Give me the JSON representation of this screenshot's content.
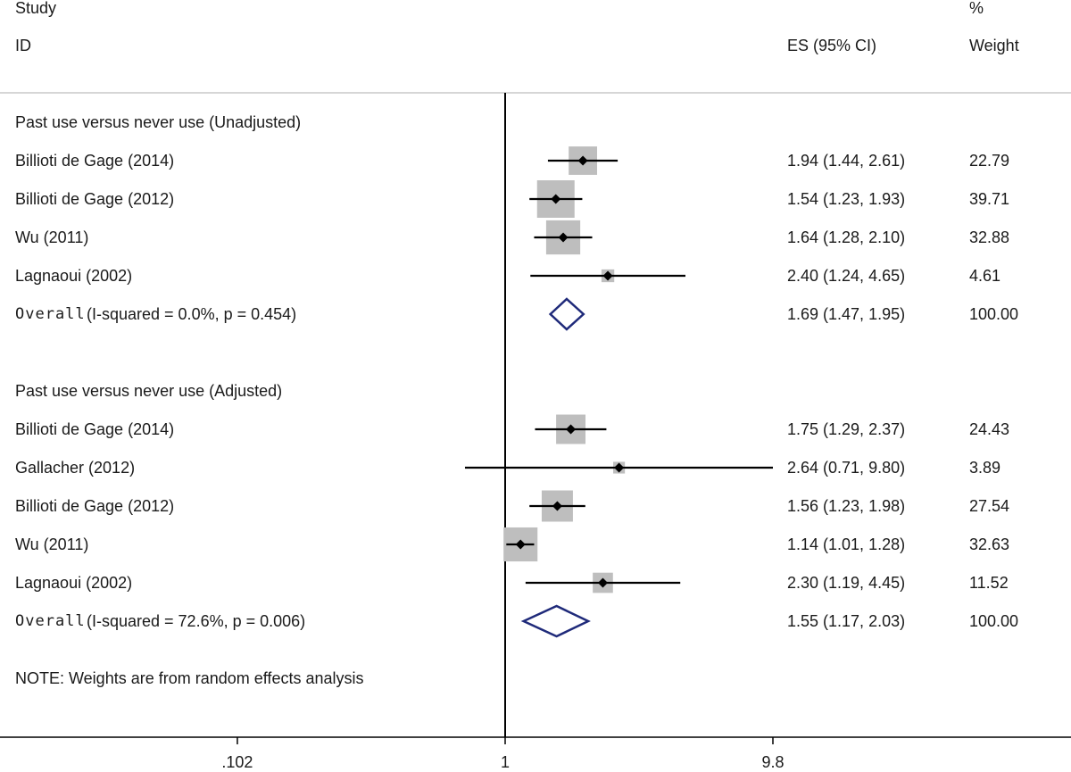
{
  "header": {
    "study_label": "Study",
    "id_label": "ID",
    "es_label": "ES (95% CI)",
    "pct_label": "%",
    "weight_label": "Weight"
  },
  "footnote": "NOTE: Weights are from random effects analysis",
  "colors": {
    "box": "#bebebe",
    "point": "#000000",
    "ci_line": "#000000",
    "diamond": "#1f2a7a",
    "axis": "#000000",
    "header_rule": "#c8c8c8"
  },
  "chart_data": {
    "type": "forest",
    "x_scale": "log",
    "reference_line": 1,
    "xticks": [
      {
        "value": 0.102,
        "label": ".102"
      },
      {
        "value": 1,
        "label": "1"
      },
      {
        "value": 9.8,
        "label": "9.8"
      }
    ],
    "groups": [
      {
        "title": "Past use versus never use (Unadjusted)",
        "studies": [
          {
            "name": "Billioti de Gage (2014)",
            "es": 1.94,
            "lower": 1.44,
            "upper": 2.61,
            "es_text": "1.94 (1.44, 2.61)",
            "weight": 22.79,
            "weight_text": "22.79"
          },
          {
            "name": "Billioti de Gage (2012)",
            "es": 1.54,
            "lower": 1.23,
            "upper": 1.93,
            "es_text": "1.54 (1.23, 1.93)",
            "weight": 39.71,
            "weight_text": "39.71"
          },
          {
            "name": "Wu (2011)",
            "es": 1.64,
            "lower": 1.28,
            "upper": 2.1,
            "es_text": "1.64 (1.28, 2.10)",
            "weight": 32.88,
            "weight_text": "32.88"
          },
          {
            "name": "Lagnaoui (2002)",
            "es": 2.4,
            "lower": 1.24,
            "upper": 4.65,
            "es_text": "2.40 (1.24, 4.65)",
            "weight": 4.61,
            "weight_text": "4.61"
          }
        ],
        "overall": {
          "label": "Overall",
          "heterogeneity": "(I-squared = 0.0%, p = 0.454)",
          "es": 1.69,
          "lower": 1.47,
          "upper": 1.95,
          "es_text": "1.69 (1.47, 1.95)",
          "weight_text": "100.00"
        }
      },
      {
        "title": "Past use versus never use (Adjusted)",
        "studies": [
          {
            "name": "Billioti de Gage (2014)",
            "es": 1.75,
            "lower": 1.29,
            "upper": 2.37,
            "es_text": "1.75 (1.29, 2.37)",
            "weight": 24.43,
            "weight_text": "24.43"
          },
          {
            "name": "Gallacher (2012)",
            "es": 2.64,
            "lower": 0.71,
            "upper": 9.8,
            "es_text": "2.64 (0.71, 9.80)",
            "weight": 3.89,
            "weight_text": "3.89"
          },
          {
            "name": "Billioti de Gage (2012)",
            "es": 1.56,
            "lower": 1.23,
            "upper": 1.98,
            "es_text": "1.56 (1.23, 1.98)",
            "weight": 27.54,
            "weight_text": "27.54"
          },
          {
            "name": "Wu (2011)",
            "es": 1.14,
            "lower": 1.01,
            "upper": 1.28,
            "es_text": "1.14 (1.01, 1.28)",
            "weight": 32.63,
            "weight_text": "32.63"
          },
          {
            "name": "Lagnaoui (2002)",
            "es": 2.3,
            "lower": 1.19,
            "upper": 4.45,
            "es_text": "2.30 (1.19, 4.45)",
            "weight": 11.52,
            "weight_text": "11.52"
          }
        ],
        "overall": {
          "label": "Overall",
          "heterogeneity": "(I-squared = 72.6%, p = 0.006)",
          "es": 1.55,
          "lower": 1.17,
          "upper": 2.03,
          "es_text": "1.55 (1.17, 2.03)",
          "weight_text": "100.00"
        }
      }
    ]
  }
}
